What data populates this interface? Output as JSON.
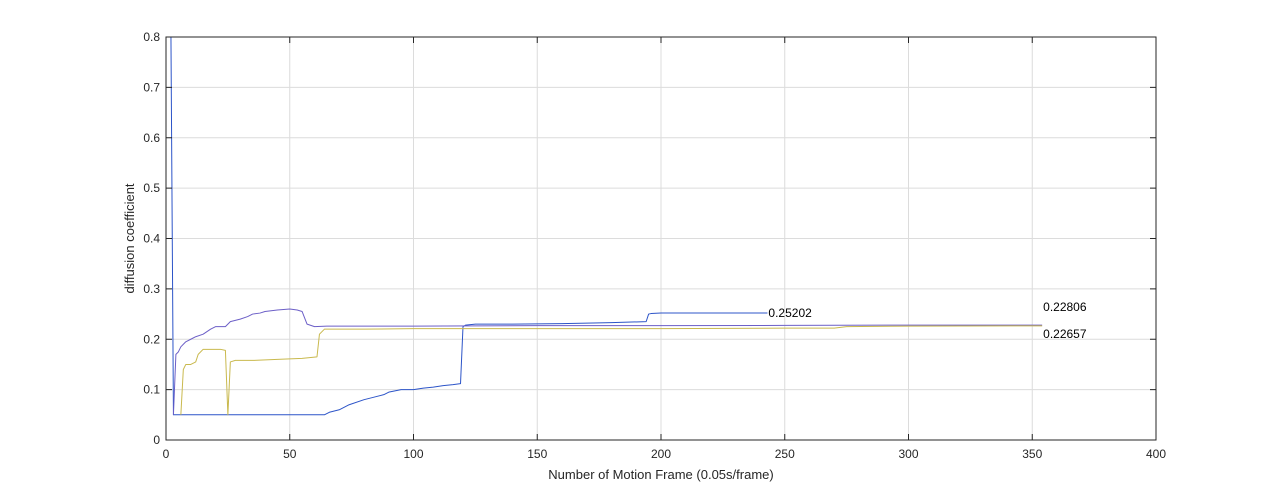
{
  "chart_data": {
    "type": "line",
    "title": "",
    "xlabel": "Number of Motion Frame (0.05s/frame)",
    "ylabel": "diffusion coefficient",
    "xlim": [
      0,
      400
    ],
    "ylim": [
      0,
      0.8
    ],
    "xticks": [
      0,
      50,
      100,
      150,
      200,
      250,
      300,
      350,
      400
    ],
    "yticks": [
      0,
      0.1,
      0.2,
      0.3,
      0.4,
      0.5,
      0.6,
      0.7,
      0.8
    ],
    "xtick_labels": [
      "0",
      "50",
      "100",
      "150",
      "200",
      "250",
      "300",
      "350",
      "400"
    ],
    "ytick_labels": [
      "0",
      "0.1",
      "0.2",
      "0.3",
      "0.4",
      "0.5",
      "0.6",
      "0.7",
      "0.8"
    ],
    "grid": true,
    "series": [
      {
        "color": "#2c54c8",
        "x": [
          2,
          3,
          4,
          8,
          16,
          30,
          40,
          50,
          55,
          60,
          64,
          66,
          70,
          74,
          80,
          84,
          88,
          90,
          95,
          100,
          104,
          108,
          112,
          116,
          119,
          120,
          121,
          125,
          140,
          160,
          180,
          194,
          195,
          196,
          200,
          220,
          243
        ],
        "y": [
          0.8,
          0.05,
          0.05,
          0.05,
          0.05,
          0.05,
          0.05,
          0.05,
          0.05,
          0.05,
          0.05,
          0.055,
          0.06,
          0.07,
          0.08,
          0.085,
          0.09,
          0.095,
          0.1,
          0.1,
          0.103,
          0.105,
          0.108,
          0.11,
          0.112,
          0.225,
          0.228,
          0.23,
          0.23,
          0.231,
          0.233,
          0.235,
          0.25,
          0.251,
          0.252,
          0.252,
          0.25202
        ]
      },
      {
        "color": "#6c5fc7",
        "x": [
          3,
          4,
          5,
          6,
          8,
          10,
          12,
          15,
          18,
          20,
          24,
          26,
          30,
          33,
          35,
          38,
          40,
          45,
          50,
          53,
          55,
          57,
          60,
          65,
          80,
          100,
          150,
          200,
          250,
          300,
          354
        ],
        "y": [
          0.05,
          0.17,
          0.175,
          0.185,
          0.195,
          0.2,
          0.205,
          0.21,
          0.22,
          0.225,
          0.225,
          0.235,
          0.24,
          0.245,
          0.25,
          0.252,
          0.255,
          0.258,
          0.26,
          0.258,
          0.255,
          0.23,
          0.225,
          0.226,
          0.226,
          0.226,
          0.227,
          0.227,
          0.2275,
          0.228,
          0.22806
        ]
      },
      {
        "color": "#c9b94e",
        "x": [
          6,
          7,
          8,
          10,
          12,
          13,
          15,
          18,
          22,
          24,
          25,
          26,
          28,
          35,
          45,
          55,
          61,
          62,
          64,
          80,
          100,
          150,
          200,
          250,
          270,
          275,
          300,
          354
        ],
        "y": [
          0.05,
          0.14,
          0.15,
          0.15,
          0.155,
          0.17,
          0.18,
          0.18,
          0.18,
          0.178,
          0.05,
          0.155,
          0.158,
          0.158,
          0.16,
          0.162,
          0.165,
          0.21,
          0.22,
          0.22,
          0.221,
          0.221,
          0.221,
          0.222,
          0.222,
          0.225,
          0.226,
          0.22657
        ]
      }
    ],
    "annotations": [
      {
        "text": "0.25202",
        "x": 243,
        "y": 0.25202
      },
      {
        "text": "0.22806",
        "x": 354,
        "y": 0.22806
      },
      {
        "text": "0.22657",
        "x": 354,
        "y": 0.22657
      }
    ]
  }
}
